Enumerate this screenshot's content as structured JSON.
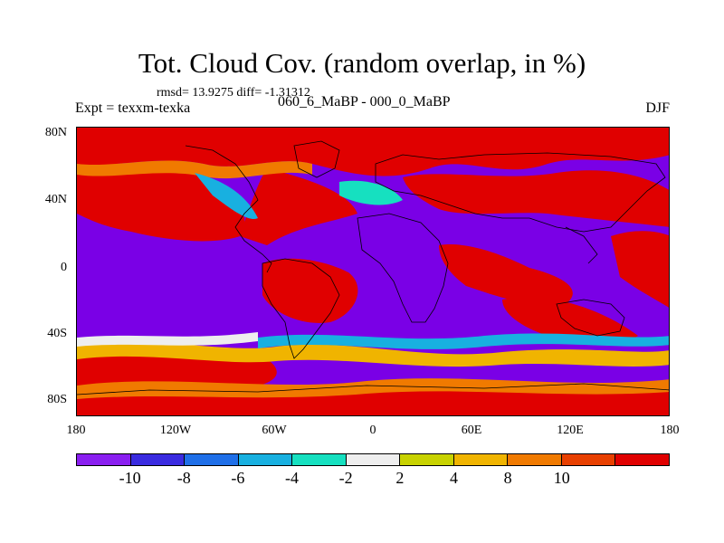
{
  "title": "Tot. Cloud Cov. (random overlap, in %)",
  "stats": "rmsd= 13.9275  diff= -1.31312",
  "expt": "Expt = texxm-texka",
  "diff_name": "060_6_MaBP - 000_0_MaBP",
  "season": "DJF",
  "lat_ticks": [
    "80N",
    "40N",
    "0",
    "40S",
    "80S"
  ],
  "lon_ticks": [
    "180",
    "120W",
    "60W",
    "0",
    "60E",
    "120E",
    "180"
  ],
  "colorbar": {
    "labels": [
      "-10",
      "-8",
      "-6",
      "-4",
      "-2",
      "2",
      "4",
      "8",
      "10"
    ],
    "colors": [
      "#8a1ff0",
      "#3a2be0",
      "#1f6fe8",
      "#18b0e0",
      "#16e0c0",
      "#eeeeee",
      "#c8d200",
      "#f0b400",
      "#f07a00",
      "#e84000",
      "#e00000"
    ]
  }
}
